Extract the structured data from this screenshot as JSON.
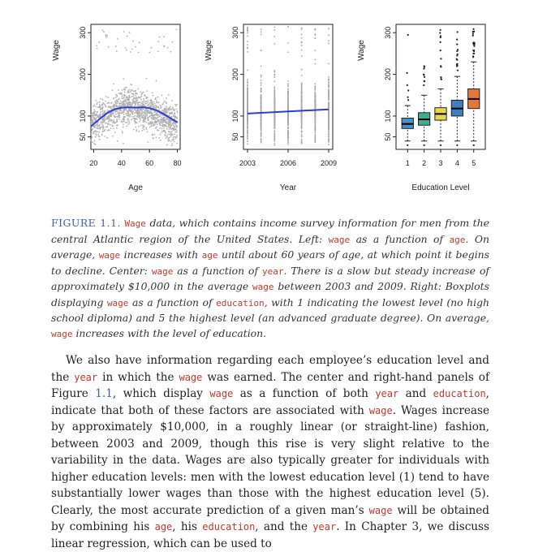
{
  "figure": {
    "panels": [
      {
        "ylabel": "Wage",
        "xlabel": "Age",
        "xticks": [
          "20",
          "40",
          "60",
          "80"
        ],
        "yticks": [
          "50",
          "100",
          "200",
          "300"
        ]
      },
      {
        "ylabel": "Wage",
        "xlabel": "Year",
        "xticks": [
          "2003",
          "2006",
          "2009"
        ],
        "yticks": [
          "50",
          "100",
          "200",
          "300"
        ]
      },
      {
        "ylabel": "Wage",
        "xlabel": "Education Level",
        "xticks": [
          "1",
          "2",
          "3",
          "4",
          "5"
        ],
        "yticks": [
          "50",
          "100",
          "200",
          "300"
        ]
      }
    ],
    "box_colors": [
      "#4a8fc9",
      "#3fae8f",
      "#e6d84a",
      "#3d7fbf",
      "#e2793a"
    ]
  },
  "chart_data": [
    {
      "type": "scatter",
      "xlabel": "Age",
      "ylabel": "Wage",
      "xlim": [
        18,
        82
      ],
      "ylim": [
        20,
        320
      ],
      "smooth_curve": {
        "x": [
          18,
          25,
          30,
          35,
          40,
          45,
          50,
          55,
          60,
          65,
          70,
          75,
          80
        ],
        "y": [
          75,
          95,
          108,
          116,
          120,
          121,
          120,
          121,
          119,
          114,
          105,
          95,
          85
        ]
      }
    },
    {
      "type": "scatter",
      "xlabel": "Year",
      "ylabel": "Wage",
      "xlim": [
        2002.7,
        2009.3
      ],
      "ylim": [
        20,
        320
      ],
      "categories": [
        "2003",
        "2004",
        "2005",
        "2006",
        "2007",
        "2008",
        "2009"
      ],
      "trend_line": {
        "x": [
          2003,
          2009
        ],
        "y": [
          106,
          116
        ]
      }
    },
    {
      "type": "box",
      "xlabel": "Education Level",
      "ylabel": "Wage",
      "ylim": [
        20,
        320
      ],
      "categories": [
        "1",
        "2",
        "3",
        "4",
        "5"
      ],
      "boxes": [
        {
          "min": 40,
          "q1": 70,
          "median": 81,
          "q3": 95,
          "max": 125
        },
        {
          "min": 40,
          "q1": 78,
          "median": 92,
          "q3": 108,
          "max": 150
        },
        {
          "min": 40,
          "q1": 90,
          "median": 105,
          "q3": 120,
          "max": 165
        },
        {
          "min": 40,
          "q1": 100,
          "median": 118,
          "q3": 138,
          "max": 195
        },
        {
          "min": 40,
          "q1": 118,
          "median": 141,
          "q3": 165,
          "max": 230
        }
      ]
    }
  ],
  "caption": {
    "label": "FIGURE 1.1.",
    "parts": [
      {
        "t": " "
      },
      {
        "c": "Wage"
      },
      {
        "t": " data, which contains income survey information for men from the central Atlantic region of the United States. Left: "
      },
      {
        "c": "wage"
      },
      {
        "t": " as a function of "
      },
      {
        "c": "age"
      },
      {
        "t": ". On average, "
      },
      {
        "c": "wage"
      },
      {
        "t": " increases with "
      },
      {
        "c": "age"
      },
      {
        "t": " until about 60 years of age, at which point it begins to decline. Center: "
      },
      {
        "c": "wage"
      },
      {
        "t": " as a function of "
      },
      {
        "c": "year"
      },
      {
        "t": ". There is a slow but steady increase of approximately $10,000 in the average "
      },
      {
        "c": "wage"
      },
      {
        "t": " between 2003 and 2009. Right: Boxplots displaying "
      },
      {
        "c": "wage"
      },
      {
        "t": " as a function of "
      },
      {
        "c": "education"
      },
      {
        "t": ", with 1 indicating the lowest level (no high school diploma) and 5 the highest level (an advanced graduate degree). On average, "
      },
      {
        "c": "wage"
      },
      {
        "t": " increases with the level of education."
      }
    ]
  },
  "body": {
    "parts": [
      {
        "t": "We also have information regarding each employee’s education level and the "
      },
      {
        "c": "year"
      },
      {
        "t": " in which the "
      },
      {
        "c": "wage"
      },
      {
        "t": " was earned. The center and right-hand panels of Figure "
      },
      {
        "r": "1.1"
      },
      {
        "t": ", which display "
      },
      {
        "c": "wage"
      },
      {
        "t": " as a function of both "
      },
      {
        "c": "year"
      },
      {
        "t": " and "
      },
      {
        "c": "education"
      },
      {
        "t": ", indicate that both of these factors are associated with "
      },
      {
        "c": "wage"
      },
      {
        "t": ". Wages increase by approximately $10,000, in a roughly linear (or straight-line) fashion, between 2003 and 2009, though this rise is very slight relative to the variability in the data. Wages are also typically greater for individuals with higher education levels: men with the lowest education level (1) tend to have substantially lower wages than those with the highest education level (5). Clearly, the most accurate prediction of a given man’s "
      },
      {
        "c": "wage"
      },
      {
        "t": " will be obtained by combining his "
      },
      {
        "c": "age"
      },
      {
        "t": ", his "
      },
      {
        "c": "education"
      },
      {
        "t": ", and the "
      },
      {
        "c": "year"
      },
      {
        "t": ". In Chapter 3, we discuss linear regression, which can be used to"
      }
    ]
  }
}
